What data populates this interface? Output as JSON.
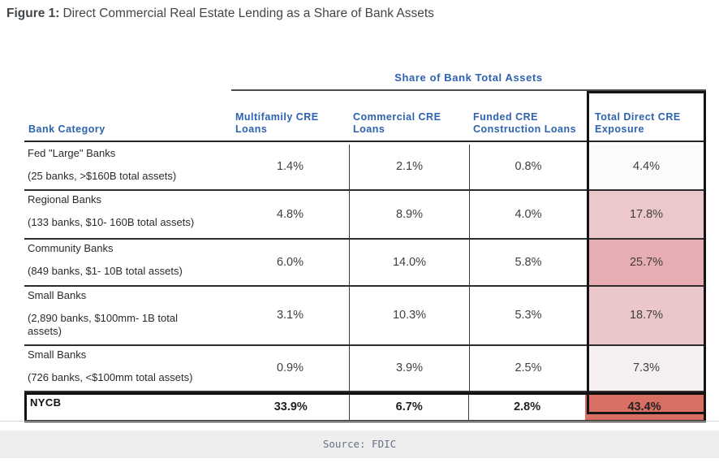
{
  "figure": {
    "label": "Figure 1:",
    "title": "Direct Commercial Real Estate Lending as a Share of Bank Assets"
  },
  "table": {
    "span_header": "Share of Bank Total Assets",
    "columns": [
      "Bank Category",
      "Multifamily CRE Loans",
      "Commercial CRE Loans",
      "Funded CRE Construction Loans",
      "Total Direct CRE Exposure"
    ],
    "rows": [
      {
        "category": "Fed \"Large\" Banks",
        "detail": "(25 banks, >$160B total assets)",
        "multifamily": "1.4%",
        "commercial": "2.1%",
        "construction": "0.8%",
        "total": "4.4%",
        "total_bg": "#fbfafc"
      },
      {
        "category": "Regional Banks",
        "detail": "(133 banks, $10- 160B total assets)",
        "multifamily": "4.8%",
        "commercial": "8.9%",
        "construction": "4.0%",
        "total": "17.8%",
        "total_bg": "#edc8cb"
      },
      {
        "category": "Community Banks",
        "detail": "(849 banks, $1- 10B total assets)",
        "multifamily": "6.0%",
        "commercial": "14.0%",
        "construction": "5.8%",
        "total": "25.7%",
        "total_bg": "#e6adb2"
      },
      {
        "category": "Small Banks",
        "detail": "(2,890 banks, $100mm- 1B total assets)",
        "multifamily": "3.1%",
        "commercial": "10.3%",
        "construction": "5.3%",
        "total": "18.7%",
        "total_bg": "#ecc7ca"
      },
      {
        "category": "Small Banks",
        "detail": "(726 banks, <$100mm total assets)",
        "multifamily": "0.9%",
        "commercial": "3.9%",
        "construction": "2.5%",
        "total": "7.3%",
        "total_bg": "#f6eff2"
      },
      {
        "category": "NYCB",
        "detail": "",
        "multifamily": "33.9%",
        "commercial": "6.7%",
        "construction": "2.8%",
        "total": "43.4%",
        "total_bg": "#d96e63"
      }
    ]
  },
  "source": "Source: FDIC",
  "colors": {
    "header_blue": "#2d62ae",
    "border_dark": "#2d2d2d",
    "highlight_red": "#d96e63",
    "source_bar_bg": "#eeeeee"
  },
  "chart_data": {
    "type": "table",
    "title": "Direct Commercial Real Estate Lending as a Share of Bank Assets",
    "columns": [
      "Bank Category",
      "Multifamily CRE Loans",
      "Commercial CRE Loans",
      "Funded CRE Construction Loans",
      "Total Direct CRE Exposure"
    ],
    "rows": [
      [
        "Fed \"Large\" Banks (25 banks, >$160B total assets)",
        1.4,
        2.1,
        0.8,
        4.4
      ],
      [
        "Regional Banks (133 banks, $10-160B total assets)",
        4.8,
        8.9,
        4.0,
        17.8
      ],
      [
        "Community Banks (849 banks, $1-10B total assets)",
        6.0,
        14.0,
        5.8,
        25.7
      ],
      [
        "Small Banks (2,890 banks, $100mm-1B total assets)",
        3.1,
        10.3,
        5.3,
        18.7
      ],
      [
        "Small Banks (726 banks, <$100mm total assets)",
        0.9,
        3.9,
        2.5,
        7.3
      ],
      [
        "NYCB",
        33.9,
        6.7,
        2.8,
        43.4
      ]
    ],
    "units": "percent of bank total assets",
    "source": "FDIC"
  }
}
